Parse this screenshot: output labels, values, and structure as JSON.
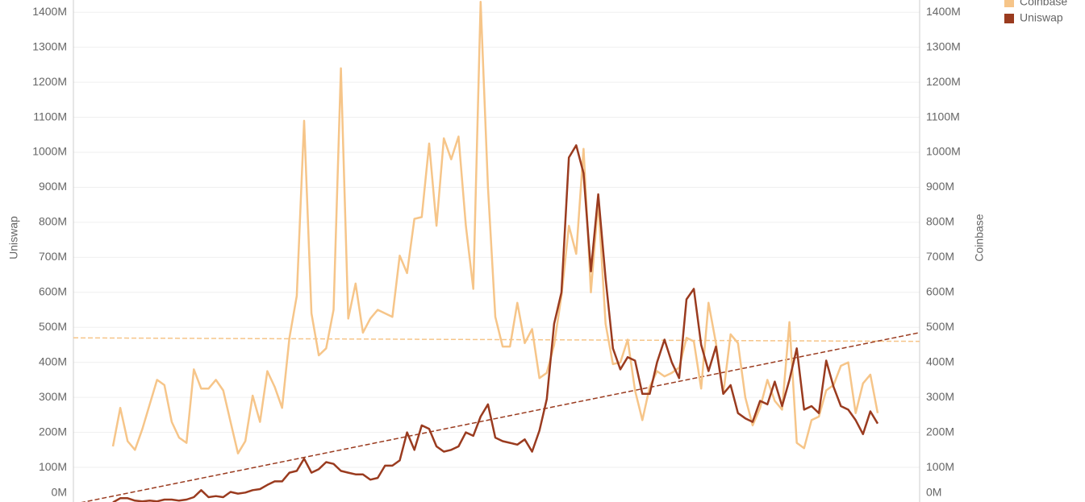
{
  "chart_data": {
    "type": "line",
    "ylabel": "Uniswap",
    "y2label": "Coinbase",
    "ylim": [
      0,
      1435
    ],
    "y2lim": [
      0,
      1435
    ],
    "yticks": [
      {
        "value": 0,
        "label": "0M"
      },
      {
        "value": 100,
        "label": "100M"
      },
      {
        "value": 200,
        "label": "200M"
      },
      {
        "value": 300,
        "label": "300M"
      },
      {
        "value": 400,
        "label": "400M"
      },
      {
        "value": 500,
        "label": "500M"
      },
      {
        "value": 600,
        "label": "600M"
      },
      {
        "value": 700,
        "label": "700M"
      },
      {
        "value": 800,
        "label": "800M"
      },
      {
        "value": 900,
        "label": "900M"
      },
      {
        "value": 1000,
        "label": "1000M"
      },
      {
        "value": 1100,
        "label": "1100M"
      },
      {
        "value": 1200,
        "label": "1200M"
      },
      {
        "value": 1300,
        "label": "1300M"
      },
      {
        "value": 1400,
        "label": "1400M"
      }
    ],
    "y2ticks": [
      {
        "value": 0,
        "label": "0M"
      },
      {
        "value": 100,
        "label": "100M"
      },
      {
        "value": 200,
        "label": "200M"
      },
      {
        "value": 300,
        "label": "300M"
      },
      {
        "value": 400,
        "label": "400M"
      },
      {
        "value": 500,
        "label": "500M"
      },
      {
        "value": 600,
        "label": "600M"
      },
      {
        "value": 700,
        "label": "700M"
      },
      {
        "value": 800,
        "label": "800M"
      },
      {
        "value": 900,
        "label": "900M"
      },
      {
        "value": 1000,
        "label": "1000M"
      },
      {
        "value": 1100,
        "label": "1100M"
      },
      {
        "value": 1200,
        "label": "1200M"
      },
      {
        "value": 1300,
        "label": "1300M"
      },
      {
        "value": 1400,
        "label": "1400M"
      }
    ],
    "grid": true,
    "series": [
      {
        "name": "Coinbase",
        "color": "#f6c589",
        "axis": "y2",
        "values": [
          160,
          270,
          175,
          150,
          210,
          280,
          350,
          335,
          230,
          185,
          170,
          380,
          325,
          325,
          350,
          320,
          230,
          140,
          175,
          305,
          230,
          375,
          330,
          270,
          470,
          590,
          1090,
          540,
          420,
          440,
          550,
          1240,
          525,
          625,
          485,
          525,
          550,
          540,
          530,
          705,
          655,
          810,
          815,
          1025,
          790,
          1040,
          980,
          1045,
          790,
          610,
          1430,
          900,
          530,
          445,
          445,
          570,
          455,
          495,
          355,
          370,
          450,
          590,
          790,
          710,
          1010,
          600,
          860,
          510,
          395,
          400,
          465,
          320,
          235,
          330,
          375,
          360,
          370,
          385,
          470,
          460,
          325,
          570,
          455,
          310,
          480,
          455,
          300,
          220,
          270,
          350,
          290,
          265,
          515,
          170,
          155,
          235,
          245,
          320,
          335,
          390,
          400,
          255,
          340,
          365,
          255
        ],
        "trend": {
          "start": 470,
          "end": 460
        }
      },
      {
        "name": "Uniswap",
        "color": "#9a3b1f",
        "values": [
          0,
          12,
          12,
          5,
          3,
          5,
          3,
          8,
          8,
          5,
          8,
          15,
          35,
          15,
          18,
          15,
          30,
          25,
          28,
          35,
          38,
          50,
          60,
          60,
          85,
          90,
          125,
          85,
          95,
          115,
          110,
          90,
          85,
          80,
          80,
          65,
          70,
          105,
          105,
          120,
          200,
          150,
          220,
          210,
          160,
          145,
          150,
          160,
          200,
          190,
          245,
          280,
          185,
          175,
          170,
          165,
          180,
          145,
          205,
          295,
          510,
          600,
          985,
          1020,
          940,
          660,
          880,
          640,
          440,
          380,
          415,
          405,
          310,
          310,
          400,
          465,
          400,
          355,
          580,
          610,
          450,
          375,
          445,
          310,
          335,
          255,
          240,
          230,
          290,
          280,
          345,
          275,
          350,
          440,
          265,
          275,
          255,
          405,
          330,
          275,
          265,
          235,
          195,
          260,
          225
        ],
        "trend": {
          "start": -5,
          "end": 485
        }
      }
    ]
  }
}
